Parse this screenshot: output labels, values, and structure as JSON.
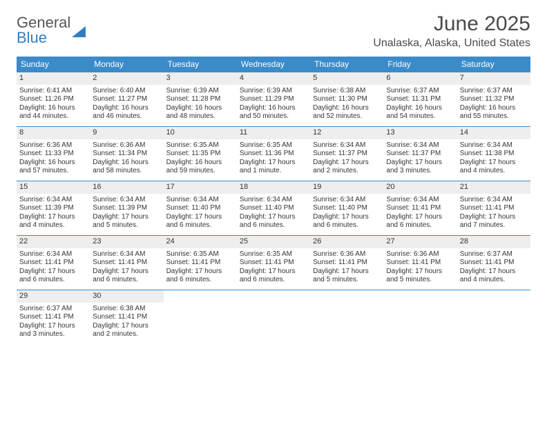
{
  "logo": {
    "line1": "General",
    "line2": "Blue"
  },
  "title": "June 2025",
  "subtitle": "Unalaska, Alaska, United States",
  "colors": {
    "header_bg": "#3b8bc9",
    "header_fg": "#ffffff",
    "daynum_bg": "#eeeeee",
    "rule": "#3b8bc9",
    "text": "#333333",
    "logo_gray": "#555555",
    "logo_blue": "#2f7ec2"
  },
  "dow": [
    "Sunday",
    "Monday",
    "Tuesday",
    "Wednesday",
    "Thursday",
    "Friday",
    "Saturday"
  ],
  "weeks": [
    [
      {
        "num": "1",
        "sunrise": "Sunrise: 6:41 AM",
        "sunset": "Sunset: 11:26 PM",
        "daylight": "Daylight: 16 hours and 44 minutes."
      },
      {
        "num": "2",
        "sunrise": "Sunrise: 6:40 AM",
        "sunset": "Sunset: 11:27 PM",
        "daylight": "Daylight: 16 hours and 46 minutes."
      },
      {
        "num": "3",
        "sunrise": "Sunrise: 6:39 AM",
        "sunset": "Sunset: 11:28 PM",
        "daylight": "Daylight: 16 hours and 48 minutes."
      },
      {
        "num": "4",
        "sunrise": "Sunrise: 6:39 AM",
        "sunset": "Sunset: 11:29 PM",
        "daylight": "Daylight: 16 hours and 50 minutes."
      },
      {
        "num": "5",
        "sunrise": "Sunrise: 6:38 AM",
        "sunset": "Sunset: 11:30 PM",
        "daylight": "Daylight: 16 hours and 52 minutes."
      },
      {
        "num": "6",
        "sunrise": "Sunrise: 6:37 AM",
        "sunset": "Sunset: 11:31 PM",
        "daylight": "Daylight: 16 hours and 54 minutes."
      },
      {
        "num": "7",
        "sunrise": "Sunrise: 6:37 AM",
        "sunset": "Sunset: 11:32 PM",
        "daylight": "Daylight: 16 hours and 55 minutes."
      }
    ],
    [
      {
        "num": "8",
        "sunrise": "Sunrise: 6:36 AM",
        "sunset": "Sunset: 11:33 PM",
        "daylight": "Daylight: 16 hours and 57 minutes."
      },
      {
        "num": "9",
        "sunrise": "Sunrise: 6:36 AM",
        "sunset": "Sunset: 11:34 PM",
        "daylight": "Daylight: 16 hours and 58 minutes."
      },
      {
        "num": "10",
        "sunrise": "Sunrise: 6:35 AM",
        "sunset": "Sunset: 11:35 PM",
        "daylight": "Daylight: 16 hours and 59 minutes."
      },
      {
        "num": "11",
        "sunrise": "Sunrise: 6:35 AM",
        "sunset": "Sunset: 11:36 PM",
        "daylight": "Daylight: 17 hours and 1 minute."
      },
      {
        "num": "12",
        "sunrise": "Sunrise: 6:34 AM",
        "sunset": "Sunset: 11:37 PM",
        "daylight": "Daylight: 17 hours and 2 minutes."
      },
      {
        "num": "13",
        "sunrise": "Sunrise: 6:34 AM",
        "sunset": "Sunset: 11:37 PM",
        "daylight": "Daylight: 17 hours and 3 minutes."
      },
      {
        "num": "14",
        "sunrise": "Sunrise: 6:34 AM",
        "sunset": "Sunset: 11:38 PM",
        "daylight": "Daylight: 17 hours and 4 minutes."
      }
    ],
    [
      {
        "num": "15",
        "sunrise": "Sunrise: 6:34 AM",
        "sunset": "Sunset: 11:39 PM",
        "daylight": "Daylight: 17 hours and 4 minutes."
      },
      {
        "num": "16",
        "sunrise": "Sunrise: 6:34 AM",
        "sunset": "Sunset: 11:39 PM",
        "daylight": "Daylight: 17 hours and 5 minutes."
      },
      {
        "num": "17",
        "sunrise": "Sunrise: 6:34 AM",
        "sunset": "Sunset: 11:40 PM",
        "daylight": "Daylight: 17 hours and 6 minutes."
      },
      {
        "num": "18",
        "sunrise": "Sunrise: 6:34 AM",
        "sunset": "Sunset: 11:40 PM",
        "daylight": "Daylight: 17 hours and 6 minutes."
      },
      {
        "num": "19",
        "sunrise": "Sunrise: 6:34 AM",
        "sunset": "Sunset: 11:40 PM",
        "daylight": "Daylight: 17 hours and 6 minutes."
      },
      {
        "num": "20",
        "sunrise": "Sunrise: 6:34 AM",
        "sunset": "Sunset: 11:41 PM",
        "daylight": "Daylight: 17 hours and 6 minutes."
      },
      {
        "num": "21",
        "sunrise": "Sunrise: 6:34 AM",
        "sunset": "Sunset: 11:41 PM",
        "daylight": "Daylight: 17 hours and 7 minutes."
      }
    ],
    [
      {
        "num": "22",
        "sunrise": "Sunrise: 6:34 AM",
        "sunset": "Sunset: 11:41 PM",
        "daylight": "Daylight: 17 hours and 6 minutes."
      },
      {
        "num": "23",
        "sunrise": "Sunrise: 6:34 AM",
        "sunset": "Sunset: 11:41 PM",
        "daylight": "Daylight: 17 hours and 6 minutes."
      },
      {
        "num": "24",
        "sunrise": "Sunrise: 6:35 AM",
        "sunset": "Sunset: 11:41 PM",
        "daylight": "Daylight: 17 hours and 6 minutes."
      },
      {
        "num": "25",
        "sunrise": "Sunrise: 6:35 AM",
        "sunset": "Sunset: 11:41 PM",
        "daylight": "Daylight: 17 hours and 6 minutes."
      },
      {
        "num": "26",
        "sunrise": "Sunrise: 6:36 AM",
        "sunset": "Sunset: 11:41 PM",
        "daylight": "Daylight: 17 hours and 5 minutes."
      },
      {
        "num": "27",
        "sunrise": "Sunrise: 6:36 AM",
        "sunset": "Sunset: 11:41 PM",
        "daylight": "Daylight: 17 hours and 5 minutes."
      },
      {
        "num": "28",
        "sunrise": "Sunrise: 6:37 AM",
        "sunset": "Sunset: 11:41 PM",
        "daylight": "Daylight: 17 hours and 4 minutes."
      }
    ],
    [
      {
        "num": "29",
        "sunrise": "Sunrise: 6:37 AM",
        "sunset": "Sunset: 11:41 PM",
        "daylight": "Daylight: 17 hours and 3 minutes."
      },
      {
        "num": "30",
        "sunrise": "Sunrise: 6:38 AM",
        "sunset": "Sunset: 11:41 PM",
        "daylight": "Daylight: 17 hours and 2 minutes."
      },
      null,
      null,
      null,
      null,
      null
    ]
  ]
}
